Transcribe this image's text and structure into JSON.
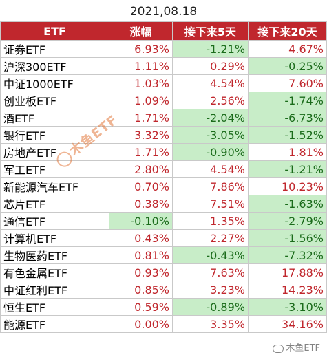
{
  "date": "2021,08.18",
  "headers": {
    "name": "ETF",
    "chg": "涨幅",
    "next5": "接下来5天",
    "next20": "接下来20天"
  },
  "rows": [
    {
      "name": "证券ETF",
      "chg": "6.93%",
      "next5": "-1.21%",
      "next20": "4.67%"
    },
    {
      "name": "沪深300ETF",
      "chg": "1.11%",
      "next5": "0.29%",
      "next20": "-0.25%"
    },
    {
      "name": "中证1000ETF",
      "chg": "1.03%",
      "next5": "4.54%",
      "next20": "7.60%"
    },
    {
      "name": "创业板ETF",
      "chg": "1.09%",
      "next5": "2.56%",
      "next20": "-1.74%"
    },
    {
      "name": "酒ETF",
      "chg": "1.71%",
      "next5": "-2.04%",
      "next20": "-6.73%"
    },
    {
      "name": "银行ETF",
      "chg": "3.32%",
      "next5": "-3.05%",
      "next20": "-1.52%"
    },
    {
      "name": "房地产ETF",
      "chg": "1.71%",
      "next5": "-0.90%",
      "next20": "1.81%"
    },
    {
      "name": "军工ETF",
      "chg": "2.80%",
      "next5": "4.54%",
      "next20": "-1.21%"
    },
    {
      "name": "新能源汽车ETF",
      "chg": "0.70%",
      "next5": "7.86%",
      "next20": "10.23%"
    },
    {
      "name": "芯片ETF",
      "chg": "0.38%",
      "next5": "7.51%",
      "next20": "-1.63%"
    },
    {
      "name": "通信ETF",
      "chg": "-0.10%",
      "next5": "1.35%",
      "next20": "-2.79%"
    },
    {
      "name": "计算机ETF",
      "chg": "0.43%",
      "next5": "2.27%",
      "next20": "-1.56%"
    },
    {
      "name": "生物医药ETF",
      "chg": "0.81%",
      "next5": "-0.43%",
      "next20": "-7.32%"
    },
    {
      "name": "有色金属ETF",
      "chg": "0.93%",
      "next5": "7.63%",
      "next20": "17.88%"
    },
    {
      "name": "中证红利ETF",
      "chg": "0.85%",
      "next5": "3.23%",
      "next20": "14.23%"
    },
    {
      "name": "恒生ETF",
      "chg": "0.59%",
      "next5": "-0.89%",
      "next20": "-3.10%"
    },
    {
      "name": "能源ETF",
      "chg": "0.00%",
      "next5": "3.35%",
      "next20": "34.16%"
    }
  ],
  "watermark": "木鱼ETF",
  "corner_mark": "木鱼ETF",
  "colors": {
    "header_bg": "#c0272d",
    "positive": "#c0272d",
    "negative": "#1a6b1a",
    "negative_bg": "#c8edc8"
  }
}
